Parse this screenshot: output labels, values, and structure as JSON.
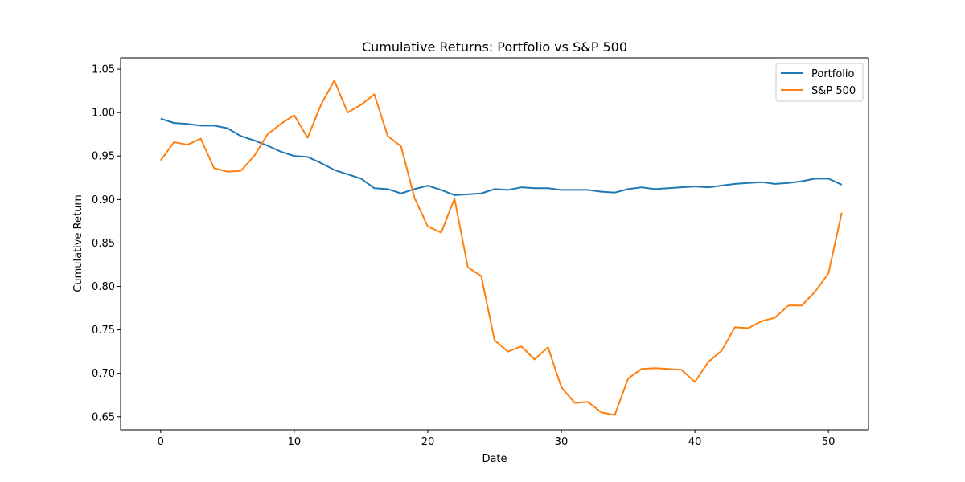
{
  "chart_data": {
    "type": "line",
    "title": "Cumulative Returns: Portfolio vs S&P 500",
    "xlabel": "Date",
    "ylabel": "Cumulative Return",
    "xlim": [
      -3,
      53
    ],
    "ylim": [
      0.635,
      1.063
    ],
    "xticks": [
      0,
      10,
      20,
      30,
      40,
      50
    ],
    "yticks": [
      "0.65",
      "0.70",
      "0.75",
      "0.80",
      "0.85",
      "0.90",
      "0.95",
      "1.00",
      "1.05"
    ],
    "grid": false,
    "legend_position": "top-right",
    "x": [
      0,
      1,
      2,
      3,
      4,
      5,
      6,
      7,
      8,
      9,
      10,
      11,
      12,
      13,
      14,
      15,
      16,
      17,
      18,
      19,
      20,
      21,
      22,
      23,
      24,
      25,
      26,
      27,
      28,
      29,
      30,
      31,
      32,
      33,
      34,
      35,
      36,
      37,
      38,
      39,
      40,
      41,
      42,
      43,
      44,
      45,
      46,
      47,
      48,
      49,
      50,
      51
    ],
    "series": [
      {
        "name": "Portfolio",
        "color": "#1f77b4",
        "values": [
          0.993,
          0.988,
          0.987,
          0.985,
          0.985,
          0.982,
          0.973,
          0.968,
          0.962,
          0.955,
          0.95,
          0.949,
          0.942,
          0.934,
          0.929,
          0.924,
          0.913,
          0.912,
          0.907,
          0.912,
          0.916,
          0.911,
          0.905,
          0.906,
          0.907,
          0.912,
          0.911,
          0.914,
          0.913,
          0.913,
          0.911,
          0.911,
          0.911,
          0.909,
          0.908,
          0.912,
          0.914,
          0.912,
          0.913,
          0.914,
          0.915,
          0.914,
          0.916,
          0.918,
          0.919,
          0.92,
          0.918,
          0.919,
          0.921,
          0.924,
          0.924,
          0.917
        ]
      },
      {
        "name": "S&P 500",
        "color": "#ff7f0e",
        "values": [
          0.945,
          0.966,
          0.963,
          0.97,
          0.936,
          0.932,
          0.933,
          0.95,
          0.975,
          0.987,
          0.997,
          0.971,
          1.009,
          1.037,
          1.0,
          1.009,
          1.021,
          0.973,
          0.961,
          0.902,
          0.869,
          0.862,
          0.901,
          0.822,
          0.812,
          0.738,
          0.725,
          0.731,
          0.716,
          0.73,
          0.684,
          0.666,
          0.667,
          0.655,
          0.652,
          0.694,
          0.705,
          0.706,
          0.705,
          0.704,
          0.69,
          0.713,
          0.726,
          0.753,
          0.752,
          0.76,
          0.764,
          0.778,
          0.778,
          0.794,
          0.815,
          0.885
        ]
      }
    ]
  }
}
